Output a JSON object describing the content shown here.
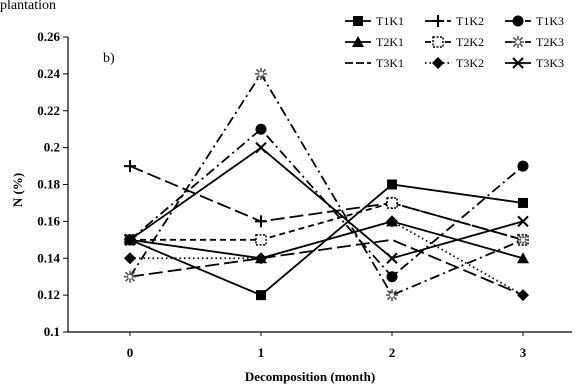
{
  "top_fragment": "plantation",
  "chart_data": {
    "type": "line",
    "panel_label": "b)",
    "xlabel": "Decomposition (month)",
    "ylabel": "N (%)",
    "x": [
      0,
      1,
      2,
      3
    ],
    "x_tick_labels": [
      "0",
      "1",
      "2",
      "3"
    ],
    "ylim": [
      0.1,
      0.26
    ],
    "y_ticks": [
      0.1,
      0.12,
      0.14,
      0.16,
      0.18,
      0.2,
      0.22,
      0.24,
      0.26
    ],
    "y_tick_labels": [
      "0.1",
      "0.12",
      "0.14",
      "0.16",
      "0.18",
      "0.2",
      "0.22",
      "0.24",
      "0.26"
    ],
    "grid": false,
    "legend_position": "top-right",
    "series": [
      {
        "name": "T1K1",
        "values": [
          0.15,
          0.12,
          0.18,
          0.17
        ],
        "marker": "square",
        "dash": "solid",
        "color": "#000000"
      },
      {
        "name": "T2K1",
        "values": [
          0.15,
          0.14,
          0.16,
          0.14
        ],
        "marker": "triangle",
        "dash": "solid",
        "color": "#000000"
      },
      {
        "name": "T3K1",
        "values": [
          0.13,
          0.14,
          0.15,
          0.12
        ],
        "marker": "none",
        "dash": "long-dash",
        "color": "#000000"
      },
      {
        "name": "T1K2",
        "values": [
          0.19,
          0.16,
          0.17,
          0.15
        ],
        "marker": "plus",
        "dash": "long-dash",
        "color": "#000000"
      },
      {
        "name": "T2K2",
        "values": [
          0.15,
          0.15,
          0.17,
          0.15
        ],
        "marker": "open-square",
        "dash": "dashed",
        "color": "#000000"
      },
      {
        "name": "T3K2",
        "values": [
          0.14,
          0.14,
          0.16,
          0.12
        ],
        "marker": "diamond",
        "dash": "dotted",
        "color": "#000000"
      },
      {
        "name": "T1K3",
        "values": [
          0.15,
          0.21,
          0.13,
          0.19
        ],
        "marker": "circle",
        "dash": "dash-dot",
        "color": "#000000"
      },
      {
        "name": "T2K3",
        "values": [
          0.13,
          0.24,
          0.12,
          0.15
        ],
        "marker": "open-star",
        "dash": "dash-dot",
        "color": "#000000"
      },
      {
        "name": "T3K3",
        "values": [
          0.15,
          0.2,
          0.14,
          0.16
        ],
        "marker": "x",
        "dash": "solid",
        "color": "#000000"
      }
    ]
  }
}
